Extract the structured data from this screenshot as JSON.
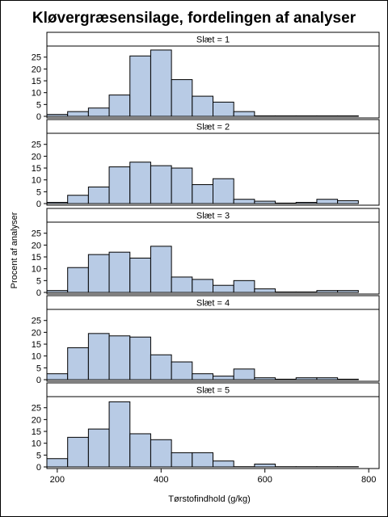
{
  "chart_data": {
    "type": "bar",
    "title": "Kløvergræsensilage, fordelingen af analyser",
    "xlabel": "Tørstofindhold (g/kg)",
    "ylabel": "Procent af analyser",
    "bin_width": 40,
    "xlim": [
      180,
      820
    ],
    "xticks": [
      200,
      400,
      600,
      800
    ],
    "ylim": [
      0,
      29
    ],
    "yticks": [
      0,
      5,
      10,
      15,
      20,
      25
    ],
    "panel_prefix": "Slæt = ",
    "panels": [
      {
        "label": "Slæt = 1",
        "bins": [
          {
            "x": 200,
            "y": 0.8
          },
          {
            "x": 240,
            "y": 2.0
          },
          {
            "x": 280,
            "y": 3.5
          },
          {
            "x": 320,
            "y": 9.0
          },
          {
            "x": 360,
            "y": 25.5
          },
          {
            "x": 400,
            "y": 28.0
          },
          {
            "x": 440,
            "y": 15.5
          },
          {
            "x": 480,
            "y": 8.5
          },
          {
            "x": 520,
            "y": 6.0
          },
          {
            "x": 560,
            "y": 2.0
          },
          {
            "x": 600,
            "y": 0.2
          },
          {
            "x": 640,
            "y": 0.2
          },
          {
            "x": 680,
            "y": 0.2
          },
          {
            "x": 720,
            "y": 0.2
          },
          {
            "x": 760,
            "y": 0.2
          }
        ]
      },
      {
        "label": "Slæt = 2",
        "bins": [
          {
            "x": 200,
            "y": 0.5
          },
          {
            "x": 240,
            "y": 3.5
          },
          {
            "x": 280,
            "y": 7.0
          },
          {
            "x": 320,
            "y": 15.5
          },
          {
            "x": 360,
            "y": 17.5
          },
          {
            "x": 400,
            "y": 16.0
          },
          {
            "x": 440,
            "y": 15.0
          },
          {
            "x": 480,
            "y": 8.0
          },
          {
            "x": 520,
            "y": 10.5
          },
          {
            "x": 560,
            "y": 1.8
          },
          {
            "x": 600,
            "y": 1.0
          },
          {
            "x": 640,
            "y": 0.2
          },
          {
            "x": 680,
            "y": 0.5
          },
          {
            "x": 720,
            "y": 1.8
          },
          {
            "x": 760,
            "y": 1.2
          }
        ]
      },
      {
        "label": "Slæt = 3",
        "bins": [
          {
            "x": 200,
            "y": 0.8
          },
          {
            "x": 240,
            "y": 10.5
          },
          {
            "x": 280,
            "y": 16.0
          },
          {
            "x": 320,
            "y": 17.0
          },
          {
            "x": 360,
            "y": 14.5
          },
          {
            "x": 400,
            "y": 19.5
          },
          {
            "x": 440,
            "y": 6.5
          },
          {
            "x": 480,
            "y": 5.5
          },
          {
            "x": 520,
            "y": 3.0
          },
          {
            "x": 560,
            "y": 5.0
          },
          {
            "x": 600,
            "y": 1.5
          },
          {
            "x": 640,
            "y": 0.2
          },
          {
            "x": 680,
            "y": 0.2
          },
          {
            "x": 720,
            "y": 0.8
          },
          {
            "x": 760,
            "y": 0.8
          }
        ]
      },
      {
        "label": "Slæt = 4",
        "bins": [
          {
            "x": 200,
            "y": 2.5
          },
          {
            "x": 240,
            "y": 13.5
          },
          {
            "x": 280,
            "y": 19.5
          },
          {
            "x": 320,
            "y": 18.5
          },
          {
            "x": 360,
            "y": 18.0
          },
          {
            "x": 400,
            "y": 10.5
          },
          {
            "x": 440,
            "y": 7.5
          },
          {
            "x": 480,
            "y": 2.5
          },
          {
            "x": 520,
            "y": 1.5
          },
          {
            "x": 560,
            "y": 4.5
          },
          {
            "x": 600,
            "y": 0.8
          },
          {
            "x": 640,
            "y": 0.2
          },
          {
            "x": 680,
            "y": 0.8
          },
          {
            "x": 720,
            "y": 0.8
          },
          {
            "x": 760,
            "y": 0.2
          }
        ]
      },
      {
        "label": "Slæt = 5",
        "bins": [
          {
            "x": 200,
            "y": 3.5
          },
          {
            "x": 240,
            "y": 12.5
          },
          {
            "x": 280,
            "y": 16.0
          },
          {
            "x": 320,
            "y": 27.5
          },
          {
            "x": 360,
            "y": 14.0
          },
          {
            "x": 400,
            "y": 11.5
          },
          {
            "x": 440,
            "y": 6.0
          },
          {
            "x": 480,
            "y": 6.0
          },
          {
            "x": 520,
            "y": 2.5
          },
          {
            "x": 560,
            "y": 0.1
          },
          {
            "x": 600,
            "y": 1.2
          },
          {
            "x": 640,
            "y": 0.1
          },
          {
            "x": 680,
            "y": 0.1
          },
          {
            "x": 720,
            "y": 0.1
          },
          {
            "x": 760,
            "y": 0.1
          }
        ]
      }
    ],
    "bar_color": "#b8cbe5",
    "grid": false
  }
}
